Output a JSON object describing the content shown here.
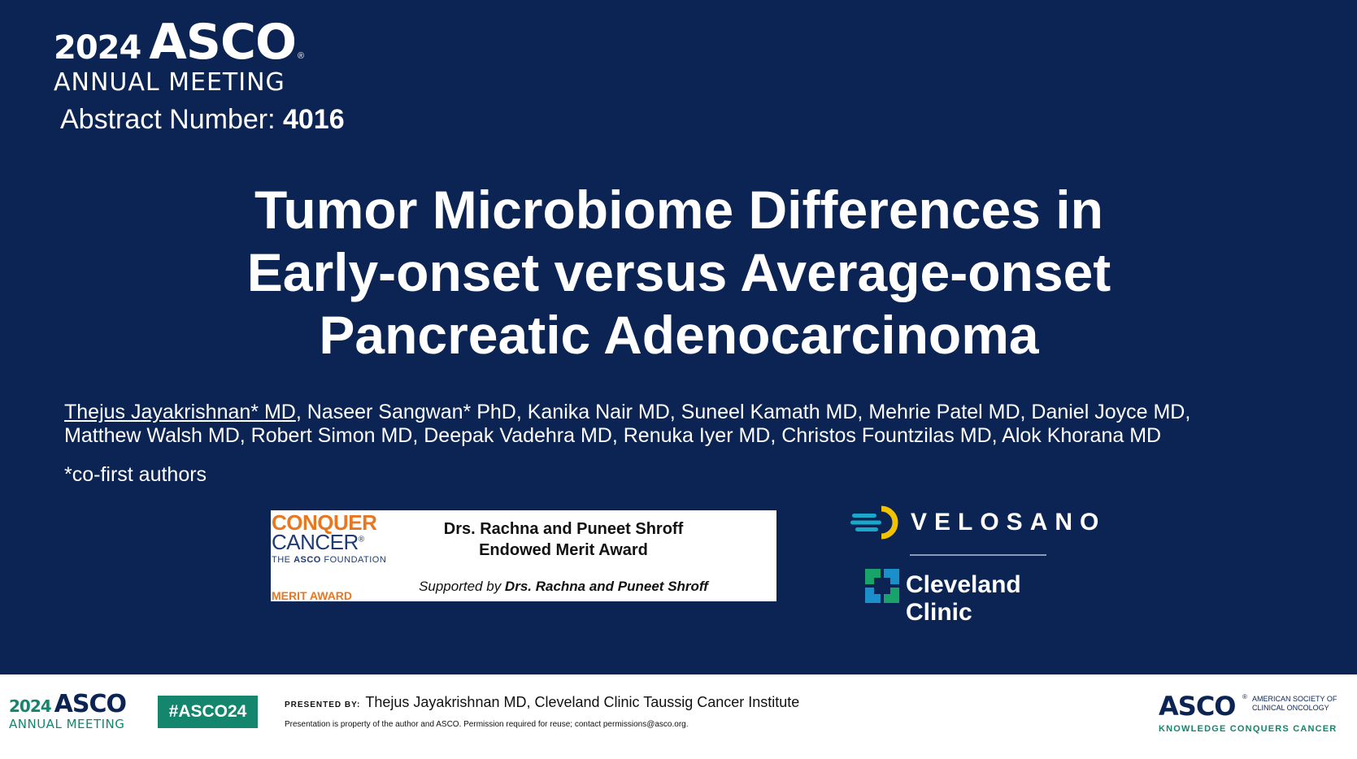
{
  "header": {
    "logo_year": "2024",
    "logo_brand": "ASCO",
    "logo_reg": "®",
    "logo_meeting": "ANNUAL MEETING",
    "abstract_label": "Abstract Number: ",
    "abstract_number": "4016"
  },
  "title": {
    "line1": "Tumor Microbiome Differences in",
    "line2": "Early-onset versus Average-onset",
    "line3": "Pancreatic Adenocarcinoma"
  },
  "authors": {
    "presenter": "Thejus Jayakrishnan* MD",
    "rest_line1": ", Naseer Sangwan* PhD, Kanika Nair MD, Suneel Kamath MD, Mehrie Patel MD, Daniel Joyce MD,",
    "line2": "Matthew Walsh MD, Robert Simon MD, Deepak Vadehra MD, Renuka Iyer MD, Christos Fountzilas MD, Alok Khorana MD",
    "note": "*co-first authors"
  },
  "award": {
    "cc_conquer": "CONQUER",
    "cc_cancer": "CANCER",
    "cc_reg": "®",
    "cc_found_pre": "THE ",
    "cc_found_asco": "ASCO",
    "cc_found_post": " FOUNDATION",
    "cc_merit": "MERIT AWARD",
    "title_line1": "Drs. Rachna and Puneet Shroff",
    "title_line2": "Endowed Merit Award",
    "supported_prefix": "Supported by ",
    "supported_names": "Drs. Rachna and Puneet Shroff"
  },
  "partners": {
    "velosano": "VELOSANO",
    "cleveland": "Cleveland Clinic"
  },
  "footer": {
    "logo_year": "2024",
    "logo_brand": "ASCO",
    "logo_meeting": "ANNUAL MEETING",
    "hashtag": "#ASCO24",
    "presented_label": "PRESENTED BY:",
    "presented_text": "Thejus Jayakrishnan MD, Cleveland Clinic Taussig Cancer Institute",
    "copyright": "Presentation is property of the author and ASCO. Permission required for reuse; contact permissions@asco.org.",
    "asco_brand": "ASCO",
    "asco_reg": "®",
    "asco_line1": "AMERICAN SOCIETY OF",
    "asco_line2": "CLINICAL ONCOLOGY",
    "asco_tagline": "KNOWLEDGE CONQUERS CANCER"
  },
  "colors": {
    "slide_bg": "#0b2454",
    "asco_green": "#13866d",
    "conquer_orange": "#e87722",
    "velosano_yellow": "#f2c200",
    "velosano_teal": "#1aa7c9"
  },
  "icons": [
    "velosano-logo-icon",
    "cleveland-clinic-logo-icon"
  ]
}
